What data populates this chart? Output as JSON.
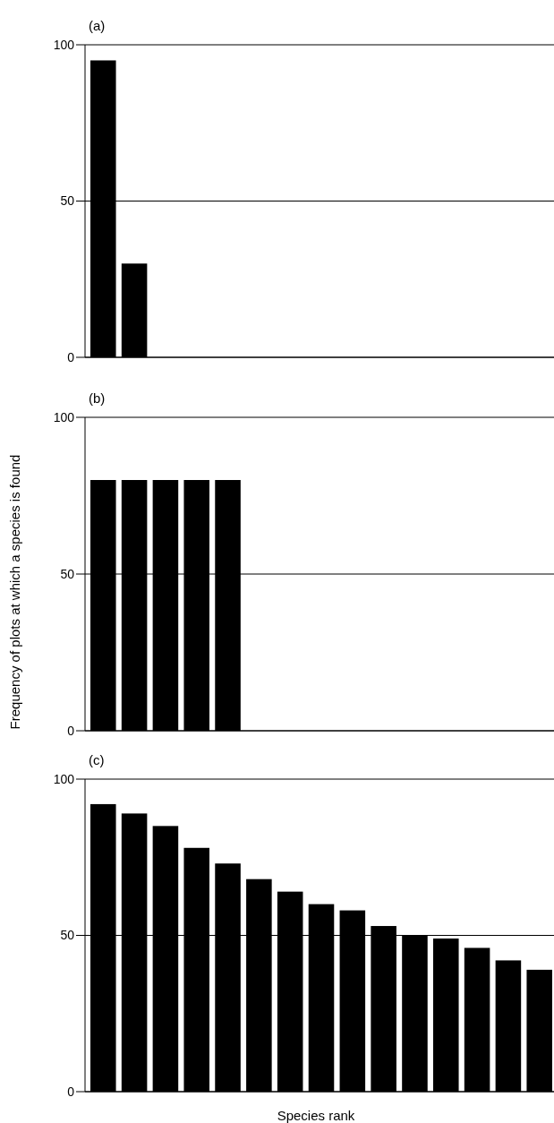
{
  "chart_data": [
    {
      "type": "bar",
      "title": "(a)",
      "categories": [
        null,
        null,
        null,
        null,
        null,
        null,
        null,
        null,
        null,
        null,
        null,
        null,
        null,
        null,
        null
      ],
      "values": [
        95,
        30,
        null,
        null,
        null,
        null,
        null,
        null,
        null,
        null,
        null,
        null,
        null,
        null,
        null
      ],
      "color": "#000000",
      "ylim": [
        0,
        100
      ],
      "yticks": [
        0,
        50,
        100
      ],
      "grid": "y",
      "tick_labels": "y"
    },
    {
      "type": "bar",
      "title": "(b)",
      "ylabel": "Frequency of plots at which a species is found",
      "categories": [
        null,
        null,
        null,
        null,
        null,
        null,
        null,
        null,
        null,
        null,
        null,
        null,
        null,
        null,
        null
      ],
      "values": [
        80,
        80,
        80,
        80,
        80,
        null,
        null,
        null,
        null,
        null,
        null,
        null,
        null,
        null,
        null
      ],
      "color": "#000000",
      "ylim": [
        0,
        100
      ],
      "yticks": [
        0,
        50,
        100
      ],
      "grid": "y",
      "tick_labels": "y"
    },
    {
      "type": "bar",
      "title": "(c)",
      "xlabel": "Species rank",
      "categories": [
        null,
        null,
        null,
        null,
        null,
        null,
        null,
        null,
        null,
        null,
        null,
        null,
        null,
        null,
        null
      ],
      "values": [
        92,
        89,
        85,
        78,
        73,
        68,
        64,
        60,
        58,
        53,
        50,
        49,
        46,
        42,
        39
      ],
      "color": "#000000",
      "ylim": [
        0,
        100
      ],
      "yticks": [
        0,
        50,
        100
      ],
      "grid": "y",
      "tick_labels": "y"
    }
  ]
}
